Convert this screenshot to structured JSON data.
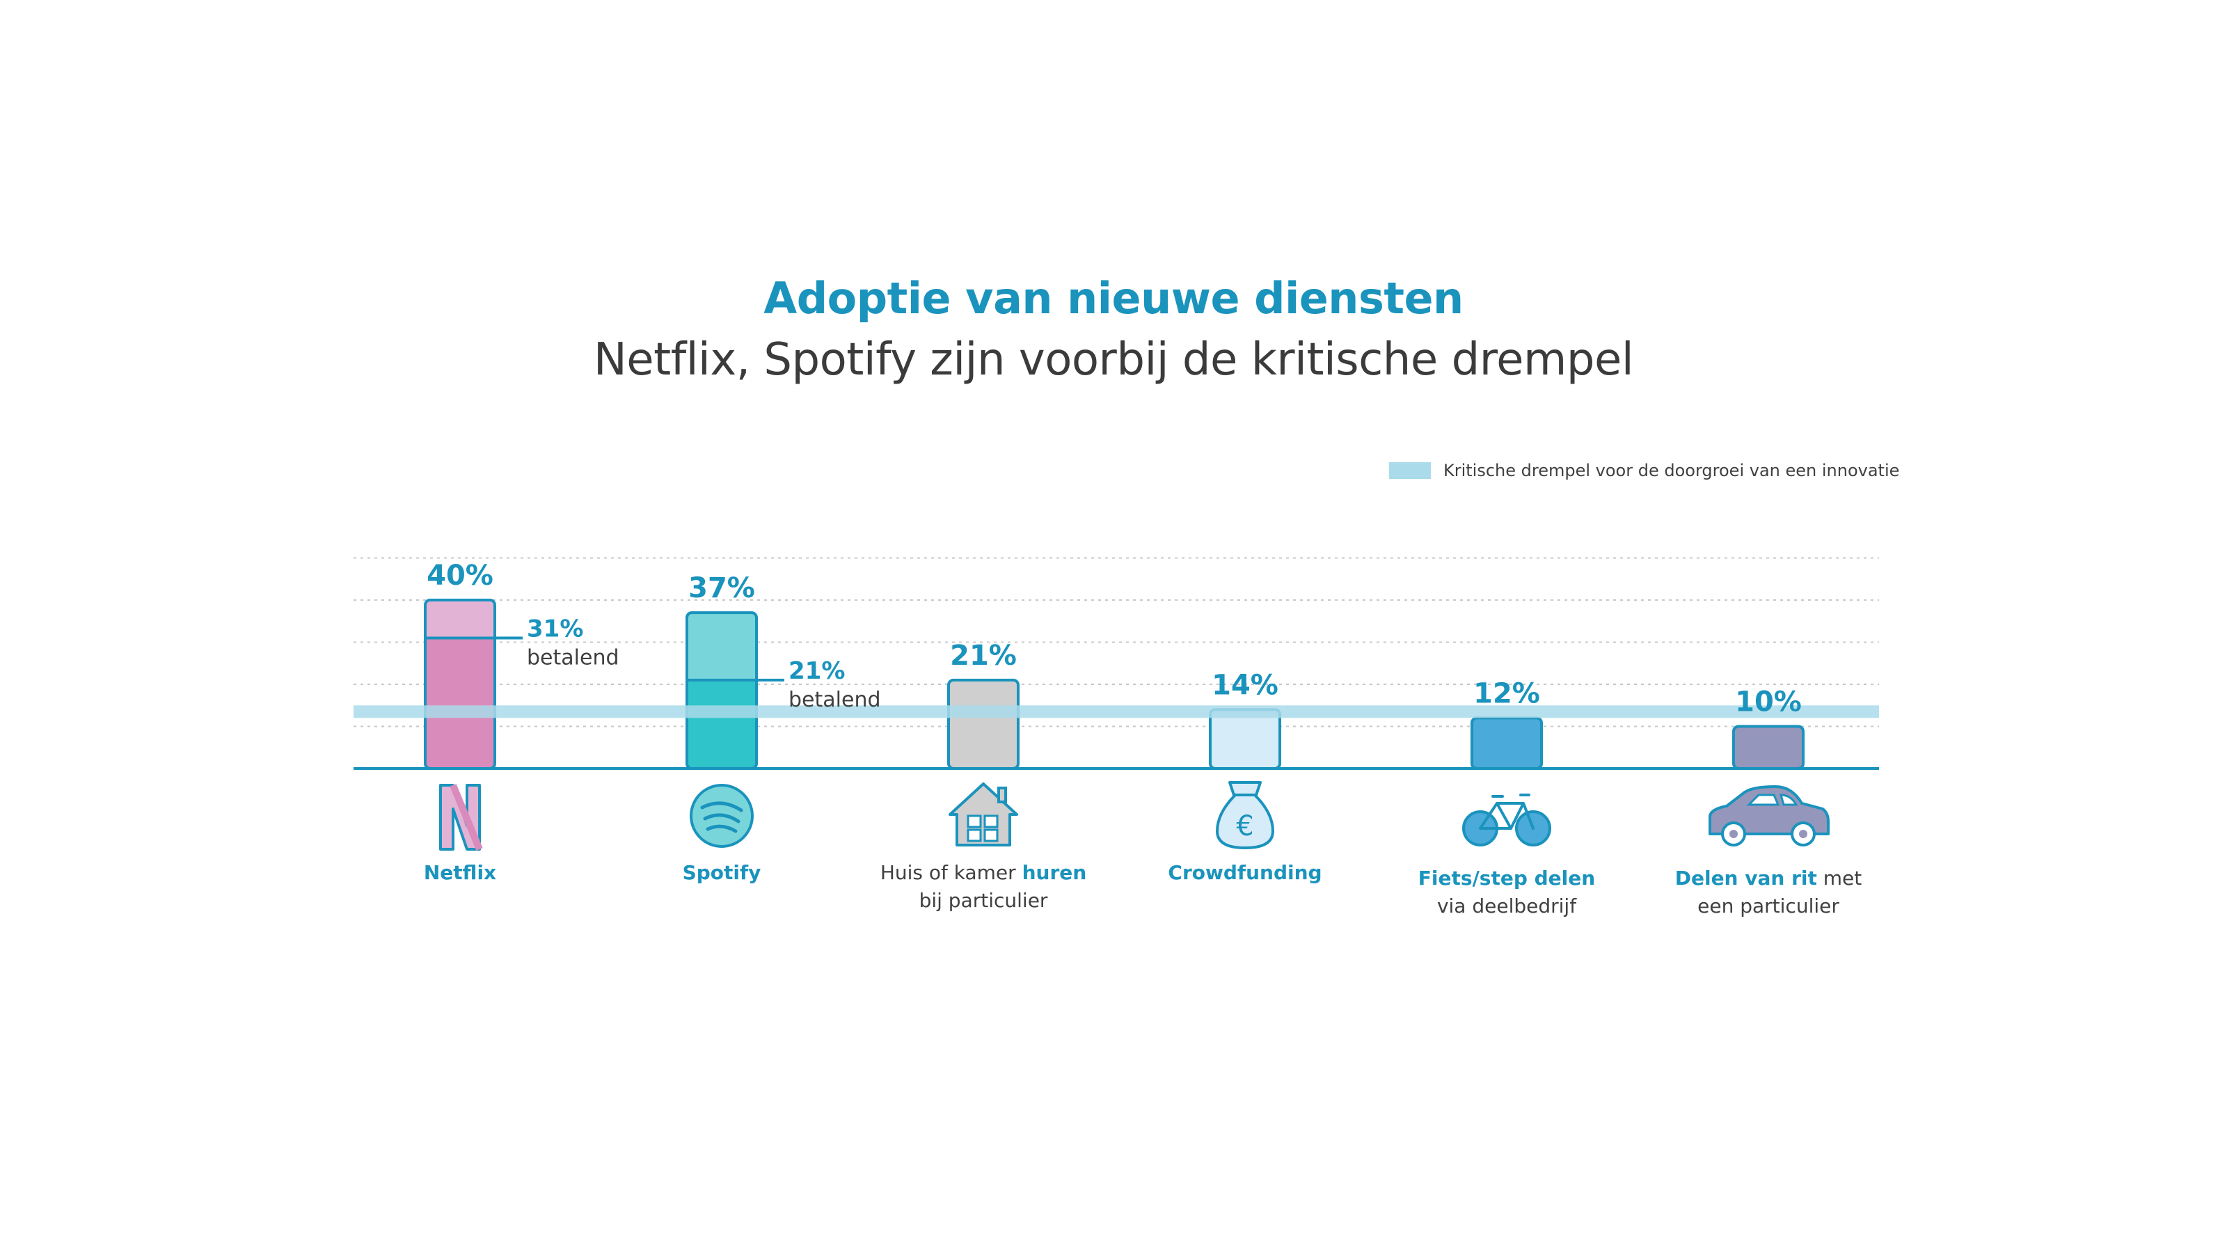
{
  "title": "Adoptie van nieuwe diensten",
  "subtitle": "Netflix, Spotify zijn voorbij de kritische drempel",
  "legend": {
    "label": "Kritische drempel voor de doorgroei van een innovatie",
    "color": "#a9dbea"
  },
  "chart_data": {
    "type": "bar",
    "ylim": [
      0,
      50
    ],
    "grid": true,
    "legend_position": "top-right",
    "threshold": {
      "value": 13.5,
      "label": "Kritische drempel voor de doorgroei van een innovatie"
    },
    "categories": [
      "Netflix",
      "Spotify",
      "Huis of kamer huren bij particulier",
      "Crowdfunding",
      "Fiets/step delen via deelbedrijf",
      "Delen van rit met een particulier"
    ],
    "values": [
      40,
      37,
      21,
      14,
      12,
      10
    ],
    "value_labels": [
      "40%",
      "37%",
      "21%",
      "14%",
      "12%",
      "10%"
    ],
    "paying": [
      {
        "index": 0,
        "value": 31,
        "label": "31%",
        "note": "betalend"
      },
      {
        "index": 1,
        "value": 21,
        "label": "21%",
        "note": "betalend"
      }
    ],
    "colors": {
      "fills": [
        "#e2b3d4",
        "#78d6da",
        "#cfcfcf",
        "#d6ecf8",
        "#4aaad9",
        "#9596bb"
      ],
      "paying_fills": [
        "#d98bbc",
        "#2ec4c9"
      ],
      "accent": "#1a93bd"
    }
  },
  "category_labels": [
    {
      "parts": [
        {
          "text": "Netflix",
          "bold": true
        }
      ],
      "icon": "netflix-n-icon"
    },
    {
      "parts": [
        {
          "text": "Spotify",
          "bold": true
        }
      ],
      "icon": "spotify-icon"
    },
    {
      "parts": [
        {
          "text": "Huis of kamer ",
          "bold": false
        },
        {
          "text": "huren",
          "bold": true
        },
        {
          "text": "\nbij particulier",
          "bold": false
        }
      ],
      "icon": "house-icon"
    },
    {
      "parts": [
        {
          "text": "Crowdfunding",
          "bold": true
        }
      ],
      "icon": "money-bag-euro-icon"
    },
    {
      "parts": [
        {
          "text": "Fiets/step delen",
          "bold": true
        },
        {
          "text": "\nvia deelbedrijf",
          "bold": false
        }
      ],
      "icon": "bicycle-icon"
    },
    {
      "parts": [
        {
          "text": "Delen van rit",
          "bold": true
        },
        {
          "text": " met\neen particulier",
          "bold": false
        }
      ],
      "icon": "car-icon"
    }
  ]
}
